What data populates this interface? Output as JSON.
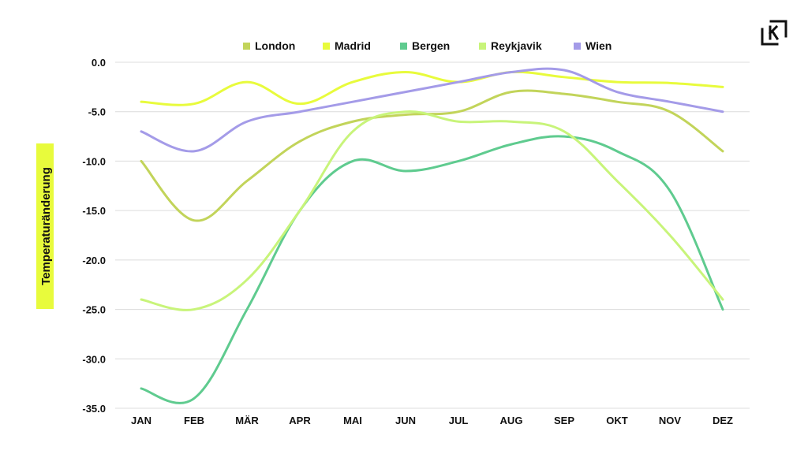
{
  "chart_data": {
    "type": "line",
    "categories": [
      "JAN",
      "FEB",
      "MÄR",
      "APR",
      "MAI",
      "JUN",
      "JUL",
      "AUG",
      "SEP",
      "OKT",
      "NOV",
      "DEZ"
    ],
    "ylabel": "Temperaturänderung",
    "xlabel": "",
    "ylim": [
      -35,
      0
    ],
    "yticks": [
      "0.0",
      "-5.0",
      "-10.0",
      "-15.0",
      "-20.0",
      "-25.0",
      "-30.0",
      "-35.0"
    ],
    "ytick_values": [
      0,
      -5,
      -10,
      -15,
      -20,
      -25,
      -30,
      -35
    ],
    "grid": true,
    "legend_position": "top",
    "series": [
      {
        "name": "London",
        "color": "#c2d45a",
        "values": [
          -10,
          -16,
          -12,
          -8,
          -6,
          -5.3,
          -5,
          -3,
          -3.2,
          -4,
          -5,
          -9
        ]
      },
      {
        "name": "Madrid",
        "color": "#e8fb3c",
        "values": [
          -4,
          -4.2,
          -2,
          -4.2,
          -2,
          -1,
          -2,
          -1,
          -1.5,
          -2,
          -2.1,
          -2.5
        ]
      },
      {
        "name": "Bergen",
        "color": "#5fcb8f",
        "values": [
          -33,
          -34,
          -25,
          -15,
          -10,
          -11,
          -10,
          -8.3,
          -7.5,
          -9,
          -13,
          -25
        ]
      },
      {
        "name": "Reykjavik",
        "color": "#c8f47a",
        "values": [
          -24,
          -25,
          -22,
          -15,
          -7,
          -5,
          -6,
          -6,
          -7,
          -12,
          -17.5,
          -24
        ]
      },
      {
        "name": "Wien",
        "color": "#a49be8",
        "values": [
          -7,
          -9,
          -6,
          -5,
          -4,
          -3,
          -2,
          -1,
          -0.8,
          -3,
          -4,
          -5
        ]
      }
    ]
  },
  "logo": {
    "icon": "k-bracket-logo-icon"
  }
}
